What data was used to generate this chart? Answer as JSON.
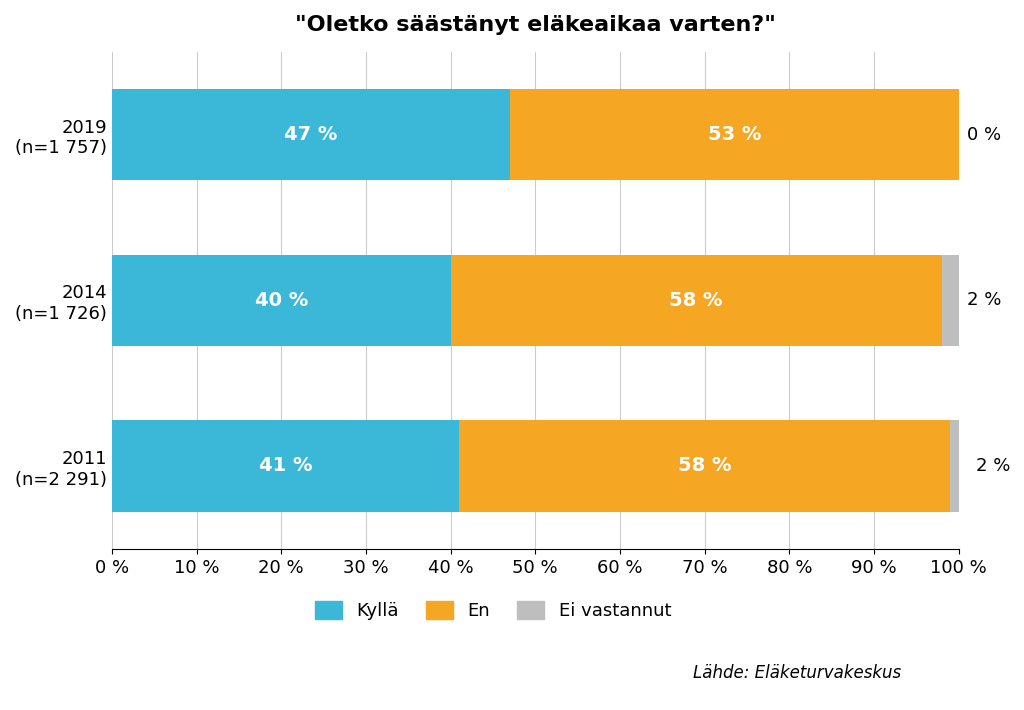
{
  "title": "\"Oletko säästänyt eläkeaikaa varten?\"",
  "years": [
    "2019\n(n=1 757)",
    "2014\n(n=1 726)",
    "2011\n(n=2 291)"
  ],
  "kylla": [
    47,
    40,
    41
  ],
  "en": [
    53,
    58,
    58
  ],
  "ei_vastannut": [
    0,
    2,
    2
  ],
  "color_kylla": "#3BB8D8",
  "color_en": "#F5A623",
  "color_ei": "#BEBEBE",
  "xlabel_ticks": [
    0,
    10,
    20,
    30,
    40,
    50,
    60,
    70,
    80,
    90,
    100
  ],
  "legend_labels": [
    "Kyllä",
    "En",
    "Ei vastannut"
  ],
  "source_text": "Lähde: Eläketurvakeskus",
  "title_fontsize": 16,
  "label_fontsize": 14,
  "tick_fontsize": 13,
  "legend_fontsize": 13,
  "source_fontsize": 12,
  "bar_height": 0.55,
  "background_color": "#FFFFFF"
}
